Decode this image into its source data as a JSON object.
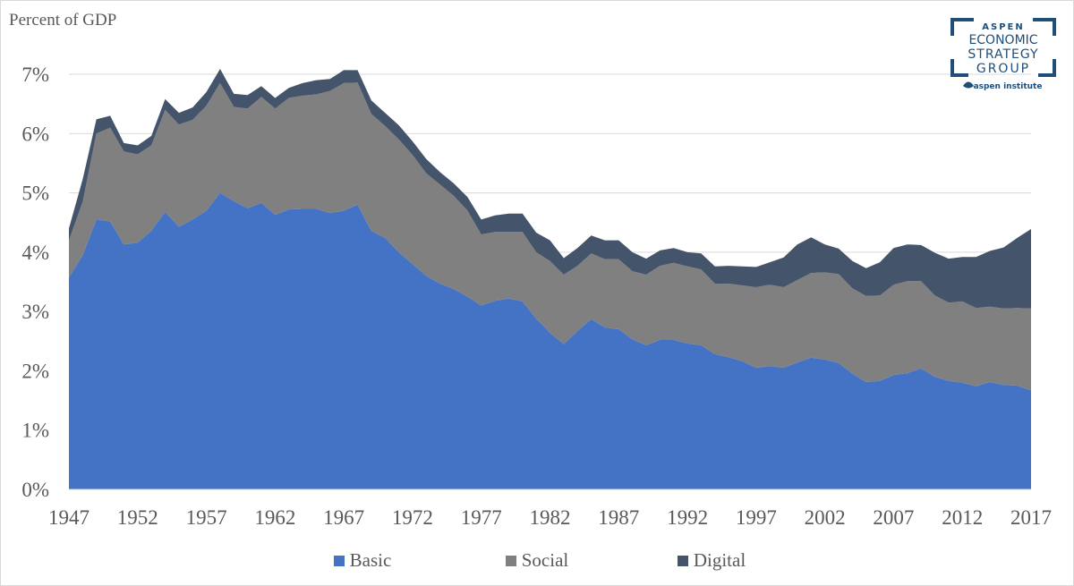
{
  "chart_data": {
    "type": "area",
    "stacked": true,
    "ylabel": "Percent of GDP",
    "ylim": [
      0,
      7
    ],
    "yticks": [
      "0%",
      "1%",
      "2%",
      "3%",
      "4%",
      "5%",
      "6%",
      "7%"
    ],
    "xticks": [
      "1947",
      "1952",
      "1957",
      "1962",
      "1967",
      "1972",
      "1977",
      "1982",
      "1987",
      "1992",
      "1997",
      "2002",
      "2007",
      "2012",
      "2017"
    ],
    "grid": true,
    "legend_position": "bottom",
    "x": [
      1947,
      1948,
      1949,
      1950,
      1951,
      1952,
      1953,
      1954,
      1955,
      1956,
      1957,
      1958,
      1959,
      1960,
      1961,
      1962,
      1963,
      1964,
      1965,
      1966,
      1967,
      1968,
      1969,
      1970,
      1971,
      1972,
      1973,
      1974,
      1975,
      1976,
      1977,
      1978,
      1979,
      1980,
      1981,
      1982,
      1983,
      1984,
      1985,
      1986,
      1987,
      1988,
      1989,
      1990,
      1991,
      1992,
      1993,
      1994,
      1995,
      1996,
      1997,
      1998,
      1999,
      2000,
      2001,
      2002,
      2003,
      2004,
      2005,
      2006,
      2007,
      2008,
      2009,
      2010,
      2011,
      2012,
      2013,
      2014,
      2015,
      2016,
      2017
    ],
    "series": [
      {
        "name": "Basic",
        "color": "#4472c4",
        "values": [
          3.57,
          3.95,
          4.55,
          4.52,
          4.13,
          4.16,
          4.36,
          4.68,
          4.43,
          4.55,
          4.7,
          5.0,
          4.86,
          4.74,
          4.83,
          4.63,
          4.72,
          4.73,
          4.73,
          4.66,
          4.7,
          4.8,
          4.36,
          4.24,
          4.0,
          3.8,
          3.6,
          3.47,
          3.38,
          3.25,
          3.1,
          3.18,
          3.22,
          3.17,
          2.88,
          2.64,
          2.45,
          2.67,
          2.87,
          2.73,
          2.7,
          2.53,
          2.43,
          2.52,
          2.52,
          2.46,
          2.43,
          2.28,
          2.23,
          2.16,
          2.05,
          2.08,
          2.05,
          2.14,
          2.22,
          2.19,
          2.13,
          1.95,
          1.81,
          1.83,
          1.93,
          1.96,
          2.04,
          1.9,
          1.83,
          1.8,
          1.74,
          1.81,
          1.76,
          1.75,
          1.67
        ]
      },
      {
        "name": "Social",
        "color": "#808080",
        "values": [
          0.63,
          0.9,
          1.45,
          1.58,
          1.57,
          1.49,
          1.44,
          1.72,
          1.72,
          1.68,
          1.77,
          1.85,
          1.59,
          1.68,
          1.79,
          1.79,
          1.88,
          1.91,
          1.93,
          2.06,
          2.15,
          2.06,
          1.97,
          1.89,
          1.9,
          1.84,
          1.73,
          1.67,
          1.57,
          1.45,
          1.2,
          1.16,
          1.12,
          1.17,
          1.12,
          1.21,
          1.17,
          1.1,
          1.11,
          1.15,
          1.18,
          1.15,
          1.19,
          1.25,
          1.3,
          1.3,
          1.28,
          1.19,
          1.24,
          1.28,
          1.36,
          1.37,
          1.36,
          1.39,
          1.43,
          1.47,
          1.5,
          1.44,
          1.45,
          1.44,
          1.52,
          1.55,
          1.47,
          1.37,
          1.32,
          1.37,
          1.32,
          1.27,
          1.29,
          1.31,
          1.38
        ]
      },
      {
        "name": "Digital",
        "color": "#44546a",
        "values": [
          0.2,
          0.38,
          0.24,
          0.2,
          0.14,
          0.15,
          0.16,
          0.18,
          0.2,
          0.21,
          0.23,
          0.24,
          0.22,
          0.23,
          0.18,
          0.18,
          0.17,
          0.21,
          0.24,
          0.2,
          0.22,
          0.21,
          0.23,
          0.22,
          0.24,
          0.23,
          0.24,
          0.21,
          0.21,
          0.23,
          0.25,
          0.28,
          0.31,
          0.31,
          0.33,
          0.35,
          0.28,
          0.3,
          0.3,
          0.32,
          0.32,
          0.32,
          0.27,
          0.26,
          0.25,
          0.24,
          0.27,
          0.29,
          0.3,
          0.32,
          0.34,
          0.38,
          0.5,
          0.6,
          0.6,
          0.47,
          0.43,
          0.46,
          0.47,
          0.56,
          0.62,
          0.62,
          0.61,
          0.72,
          0.74,
          0.75,
          0.86,
          0.94,
          1.03,
          1.18,
          1.34
        ]
      }
    ]
  },
  "logo": {
    "line1": "ASPEN",
    "line2": "ECONOMIC",
    "line3": "STRATEGY",
    "line4": "GROUP",
    "sub": "aspen institute"
  }
}
